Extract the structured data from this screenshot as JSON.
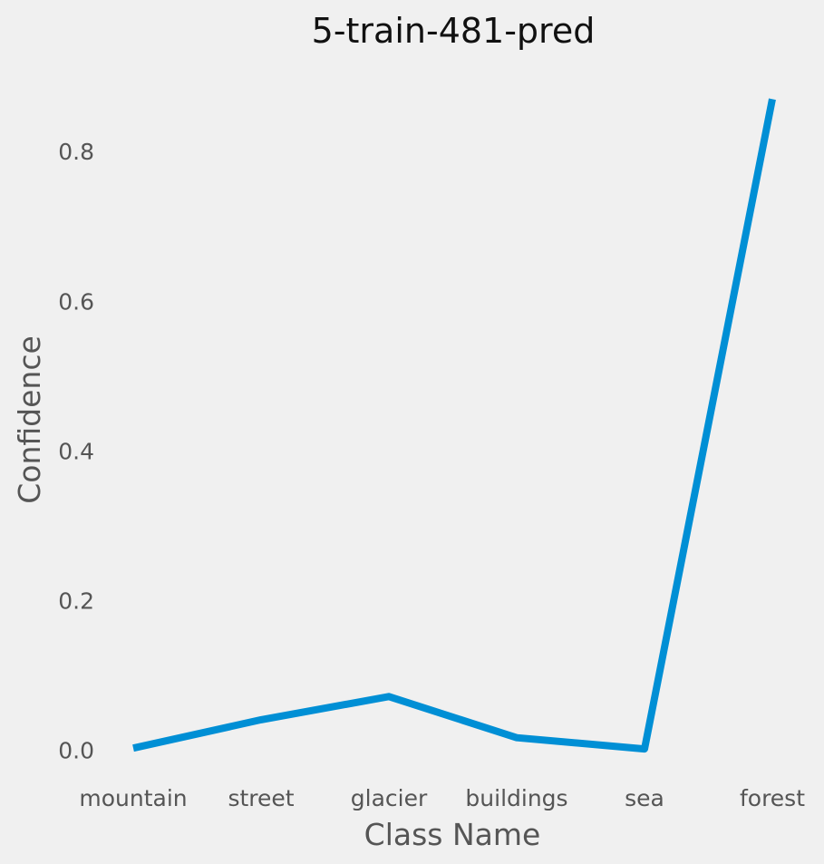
{
  "chart_data": {
    "type": "line",
    "title": "5-train-481-pred",
    "xlabel": "Class Name",
    "ylabel": "Confidence",
    "categories": [
      "mountain",
      "street",
      "glacier",
      "buildings",
      "sea",
      "forest"
    ],
    "series": [
      {
        "values": [
          0.003,
          0.041,
          0.072,
          0.017,
          0.002,
          0.87
        ],
        "color": "#008fd5"
      }
    ],
    "yticks": [
      "0.0",
      "0.2",
      "0.4",
      "0.6",
      "0.8"
    ],
    "ytick_values": [
      0.0,
      0.2,
      0.4,
      0.6,
      0.8
    ],
    "ylim": [
      -0.027,
      0.914
    ],
    "grid": false,
    "legend": "none",
    "background": "#f0f0f0"
  }
}
